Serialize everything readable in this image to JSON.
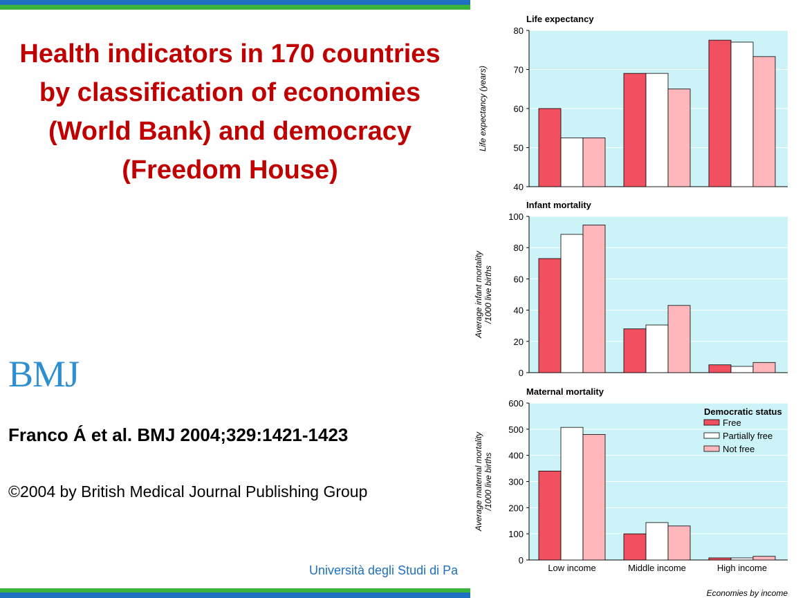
{
  "slide": {
    "title": "Health indicators in 170 countries by classification of economies (World Bank) and democracy (Freedom House)",
    "logo_text": "BMJ",
    "citation": "Franco Á et al. BMJ 2004;329:1421-1423",
    "copyright": "©2004 by British Medical Journal Publishing Group",
    "footer": "Università degli Studi di Pa"
  },
  "colors": {
    "free": "#f05060",
    "partially_free": "#ffffff",
    "not_free": "#ffb7bc",
    "plot_bg": "#ccf3f7",
    "title_red": "#c00000",
    "stripe_blue": "#1e6fbf",
    "stripe_green": "#3cb43c"
  },
  "chart_data": {
    "type": "bar",
    "categories": [
      "Low income",
      "Middle income",
      "High income"
    ],
    "xlabel": "Economies by income",
    "legend": {
      "title": "Democratic status",
      "placement": "top-right",
      "entries": [
        "Free",
        "Partially free",
        "Not free"
      ]
    },
    "panels": [
      {
        "title": "Life expectancy",
        "ylabel": "Life expectancy (years)",
        "ylim": [
          40,
          80
        ],
        "yticks": [
          40,
          50,
          60,
          70,
          80
        ],
        "series": [
          {
            "name": "Free",
            "values": [
              60,
              69,
              77.5
            ]
          },
          {
            "name": "Partially free",
            "values": [
              52.5,
              69,
              77
            ]
          },
          {
            "name": "Not free",
            "values": [
              52.5,
              65,
              73.3
            ]
          }
        ]
      },
      {
        "title": "Infant mortality",
        "ylabel": "Average infant mortality /1000 live births",
        "ylim": [
          0,
          100
        ],
        "yticks": [
          0,
          20,
          40,
          60,
          80,
          100
        ],
        "series": [
          {
            "name": "Free",
            "values": [
              73,
              28,
              5
            ]
          },
          {
            "name": "Partially free",
            "values": [
              88.5,
              30.5,
              4
            ]
          },
          {
            "name": "Not free",
            "values": [
              94.5,
              43,
              6.5
            ]
          }
        ]
      },
      {
        "title": "Maternal mortality",
        "ylabel": "Average maternal mortality /1000 live births",
        "ylim": [
          0,
          600
        ],
        "yticks": [
          0,
          100,
          200,
          300,
          400,
          500,
          600
        ],
        "series": [
          {
            "name": "Free",
            "values": [
              340,
              100,
              8
            ]
          },
          {
            "name": "Partially free",
            "values": [
              507,
              143,
              8
            ]
          },
          {
            "name": "Not free",
            "values": [
              480,
              130,
              14
            ]
          }
        ]
      }
    ]
  }
}
